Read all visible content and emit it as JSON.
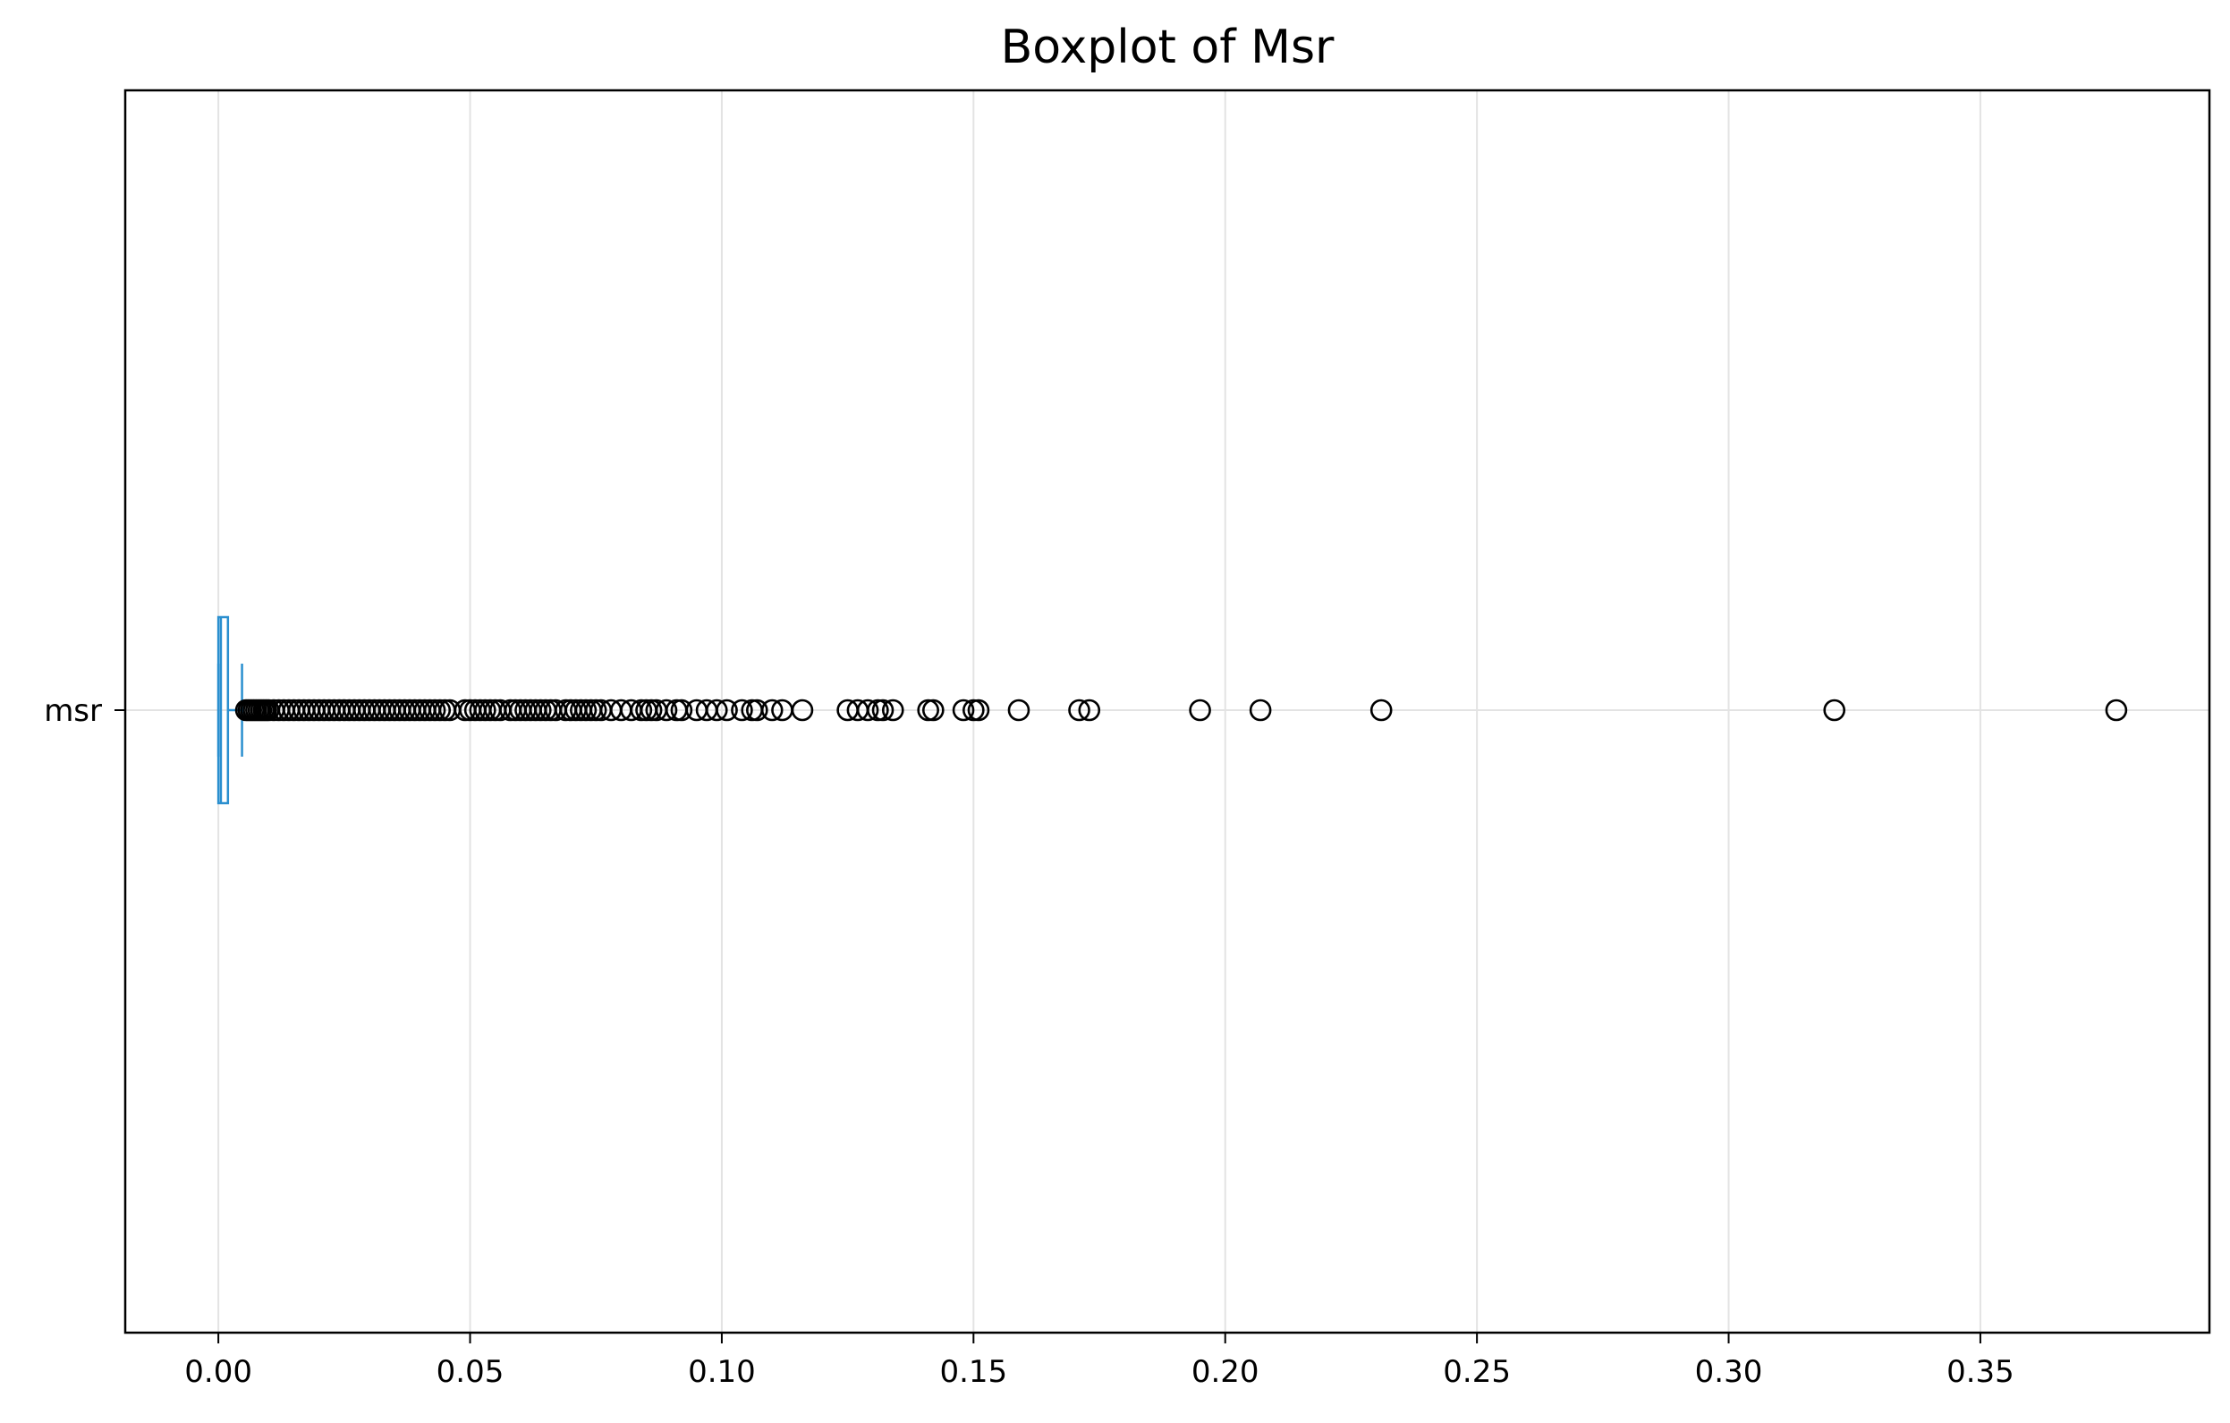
{
  "chart_data": {
    "type": "boxplot",
    "orientation": "horizontal",
    "title": "Boxplot of Msr",
    "xlabel": "",
    "ylabel": "",
    "xlim": [
      -0.0185,
      0.3955
    ],
    "xticks": [
      {
        "value": 0.0,
        "label": "0.00"
      },
      {
        "value": 0.05,
        "label": "0.05"
      },
      {
        "value": 0.1,
        "label": "0.10"
      },
      {
        "value": 0.15,
        "label": "0.15"
      },
      {
        "value": 0.2,
        "label": "0.20"
      },
      {
        "value": 0.25,
        "label": "0.25"
      },
      {
        "value": 0.3,
        "label": "0.30"
      },
      {
        "value": 0.35,
        "label": "0.35"
      }
    ],
    "grid": true,
    "series": [
      {
        "name": "msr",
        "box": {
          "whisker_low": 0.0,
          "q1": 0.0,
          "median": 0.0005,
          "q3": 0.0019,
          "whisker_high": 0.0047
        },
        "outliers": [
          0.0055,
          0.006,
          0.0065,
          0.007,
          0.0075,
          0.008,
          0.0085,
          0.009,
          0.0095,
          0.01,
          0.011,
          0.012,
          0.013,
          0.014,
          0.015,
          0.016,
          0.017,
          0.018,
          0.019,
          0.02,
          0.021,
          0.022,
          0.023,
          0.024,
          0.025,
          0.026,
          0.027,
          0.028,
          0.029,
          0.03,
          0.031,
          0.032,
          0.033,
          0.034,
          0.035,
          0.036,
          0.037,
          0.038,
          0.039,
          0.04,
          0.041,
          0.042,
          0.043,
          0.044,
          0.045,
          0.046,
          0.049,
          0.05,
          0.051,
          0.052,
          0.053,
          0.054,
          0.055,
          0.056,
          0.058,
          0.059,
          0.06,
          0.061,
          0.062,
          0.063,
          0.064,
          0.065,
          0.066,
          0.067,
          0.069,
          0.07,
          0.071,
          0.072,
          0.073,
          0.074,
          0.075,
          0.076,
          0.078,
          0.08,
          0.082,
          0.084,
          0.085,
          0.086,
          0.087,
          0.089,
          0.091,
          0.092,
          0.095,
          0.097,
          0.099,
          0.101,
          0.104,
          0.106,
          0.107,
          0.11,
          0.112,
          0.116,
          0.125,
          0.127,
          0.129,
          0.131,
          0.132,
          0.134,
          0.141,
          0.142,
          0.148,
          0.15,
          0.151,
          0.159,
          0.171,
          0.173,
          0.195,
          0.207,
          0.231,
          0.321,
          0.377
        ]
      }
    ],
    "colors": {
      "box": "#2a8fcf",
      "outlier_edge": "#000000",
      "grid": "#e3e3e3",
      "frame": "#000000"
    }
  }
}
